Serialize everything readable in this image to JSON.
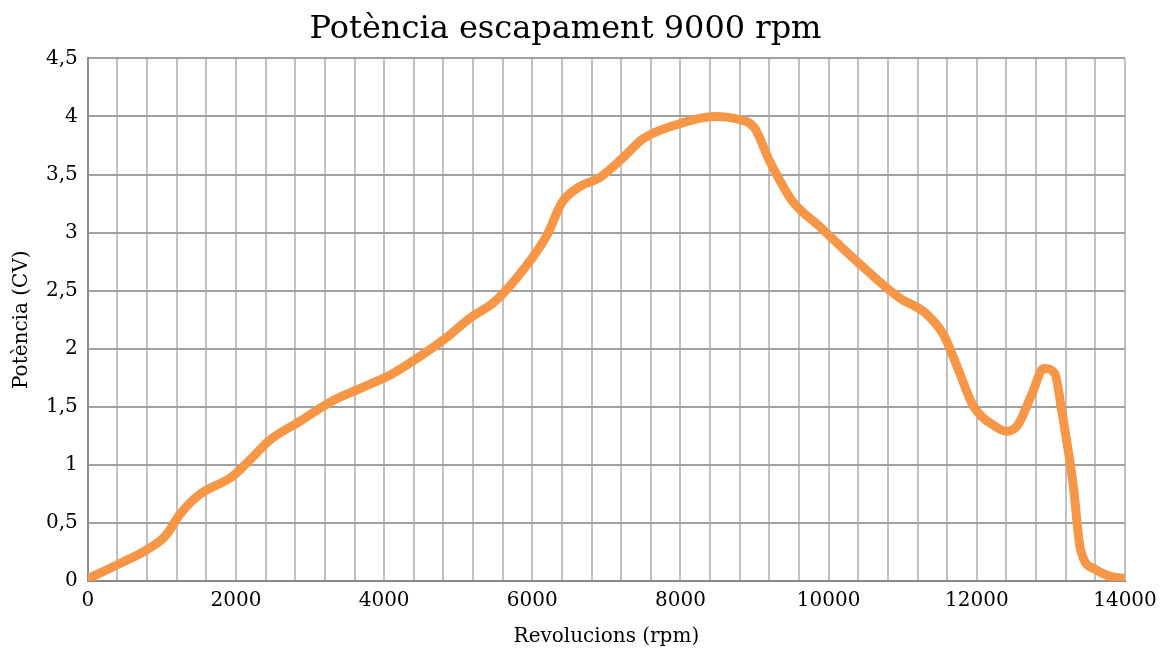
{
  "chart_data": {
    "type": "line",
    "title": "Potència escapament 9000 rpm",
    "xlabel": "Revolucions (rpm)",
    "ylabel": "Potència (CV)",
    "x": [
      0,
      400,
      800,
      1050,
      1250,
      1500,
      1950,
      2200,
      2450,
      2850,
      3300,
      3650,
      4100,
      4450,
      4850,
      5150,
      5500,
      5950,
      6200,
      6400,
      6650,
      6900,
      7200,
      7500,
      8000,
      8450,
      8750,
      9000,
      9200,
      9500,
      9900,
      10350,
      10950,
      11300,
      11550,
      11750,
      11950,
      12250,
      12400,
      12550,
      12750,
      12900,
      13050,
      13150,
      13300,
      13400,
      13600,
      13800,
      14000
    ],
    "series": [
      {
        "color": "#f79646",
        "values": [
          0.02,
          0.14,
          0.27,
          0.39,
          0.58,
          0.74,
          0.9,
          1.05,
          1.21,
          1.37,
          1.55,
          1.65,
          1.78,
          1.92,
          2.1,
          2.26,
          2.41,
          2.74,
          2.98,
          3.26,
          3.4,
          3.47,
          3.63,
          3.81,
          3.94,
          4.0,
          3.98,
          3.9,
          3.62,
          3.28,
          3.04,
          2.77,
          2.44,
          2.31,
          2.12,
          1.82,
          1.51,
          1.33,
          1.29,
          1.34,
          1.62,
          1.83,
          1.79,
          1.45,
          0.83,
          0.27,
          0.1,
          0.04,
          0.02
        ]
      }
    ],
    "xlim": [
      0,
      14000
    ],
    "ylim": [
      0,
      4.5
    ],
    "xticks": [
      0,
      {
        "value": 400,
        "label": null
      },
      {
        "value": 800,
        "label": null
      },
      {
        "value": 1200,
        "label": null
      },
      {
        "value": 1600,
        "label": null
      },
      2000,
      {
        "value": 2400,
        "label": null
      },
      {
        "value": 2800,
        "label": null
      },
      {
        "value": 3200,
        "label": null
      },
      {
        "value": 3600,
        "label": null
      },
      4000,
      {
        "value": 4400,
        "label": null
      },
      {
        "value": 4800,
        "label": null
      },
      {
        "value": 5200,
        "label": null
      },
      {
        "value": 5600,
        "label": null
      },
      6000,
      {
        "value": 6400,
        "label": null
      },
      {
        "value": 6800,
        "label": null
      },
      {
        "value": 7200,
        "label": null
      },
      {
        "value": 7600,
        "label": null
      },
      8000,
      {
        "value": 8400,
        "label": null
      },
      {
        "value": 8800,
        "label": null
      },
      {
        "value": 9200,
        "label": null
      },
      {
        "value": 9600,
        "label": null
      },
      10000,
      {
        "value": 10400,
        "label": null
      },
      {
        "value": 10800,
        "label": null
      },
      {
        "value": 11200,
        "label": null
      },
      {
        "value": 11600,
        "label": null
      },
      12000,
      {
        "value": 12400,
        "label": null
      },
      {
        "value": 12800,
        "label": null
      },
      {
        "value": 13200,
        "label": null
      },
      {
        "value": 13600,
        "label": null
      },
      14000
    ],
    "yticks": [
      0,
      {
        "value": 0.5,
        "label": "0,5"
      },
      1,
      {
        "value": 1.5,
        "label": "1,5"
      },
      2,
      {
        "value": 2.5,
        "label": "2,5"
      },
      3,
      {
        "value": 3.5,
        "label": "3,5"
      },
      4,
      {
        "value": 4.5,
        "label": "4,5"
      }
    ],
    "grid": true,
    "marker": "none",
    "line_style": "solid"
  }
}
